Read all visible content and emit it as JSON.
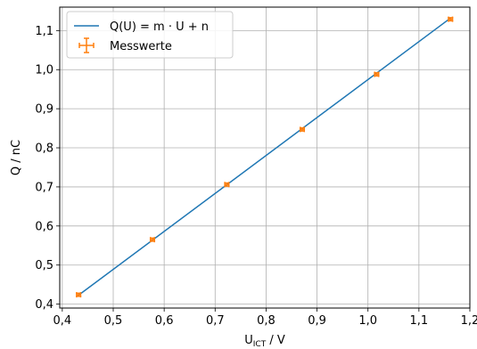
{
  "chart_data": {
    "type": "line",
    "xlabel": {
      "main": "U",
      "sub": "ICT",
      "rest": " / V"
    },
    "ylabel": "Q / nC",
    "xlim": [
      0.395,
      1.2
    ],
    "ylim": [
      0.39,
      1.16
    ],
    "xticks": [
      0.4,
      0.5,
      0.6,
      0.7,
      0.8,
      0.9,
      1.0,
      1.1,
      1.2
    ],
    "xtick_labels": [
      "0,4",
      "0,5",
      "0,6",
      "0,7",
      "0,8",
      "0,9",
      "1,0",
      "1,1",
      "1,2"
    ],
    "yticks": [
      0.4,
      0.5,
      0.6,
      0.7,
      0.8,
      0.9,
      1.0,
      1.1
    ],
    "ytick_labels": [
      "0,4",
      "0,5",
      "0,6",
      "0,7",
      "0,8",
      "0,9",
      "1,0",
      "1,1"
    ],
    "grid": true,
    "legend_position": "top-left",
    "series": [
      {
        "name": "Q(U) = m · U + n",
        "kind": "line",
        "color": "#1f77b4",
        "x": [
          0.43,
          1.162
        ],
        "y": [
          0.421,
          1.132
        ]
      },
      {
        "name": "Messwerte",
        "kind": "errorbar",
        "color": "#ff7f0e",
        "x": [
          0.432,
          0.577,
          0.723,
          0.871,
          1.017,
          1.162
        ],
        "y": [
          0.424,
          0.565,
          0.706,
          0.847,
          0.988,
          1.129
        ],
        "xerr": 0.004,
        "yerr": 0.004
      }
    ]
  }
}
